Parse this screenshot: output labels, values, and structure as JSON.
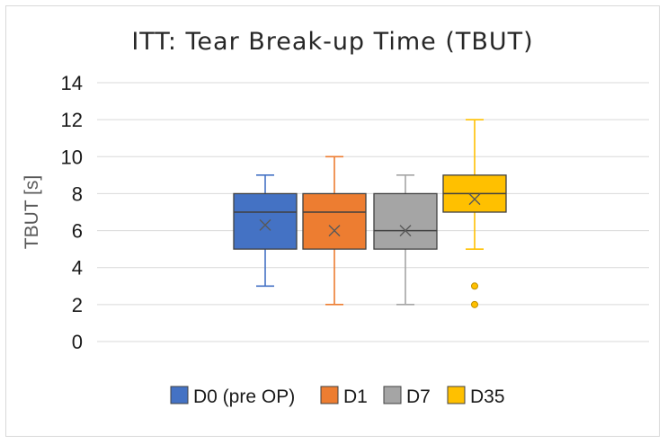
{
  "chart_data": {
    "type": "boxplot",
    "title": "ITT: Tear Break-up Time (TBUT)",
    "xlabel": "",
    "ylabel": "TBUT [s]",
    "ylim": [
      0,
      14
    ],
    "yticks": [
      0,
      2,
      4,
      6,
      8,
      10,
      12,
      14
    ],
    "grid": true,
    "legend_position": "bottom",
    "series": [
      {
        "name": "D0 (pre OP)",
        "color": "#4472c4",
        "min": 3,
        "q1": 5,
        "median": 7,
        "q3": 8,
        "max": 9,
        "mean": 6.3,
        "outliers": []
      },
      {
        "name": "D1",
        "color": "#ed7d31",
        "min": 2,
        "q1": 5,
        "median": 7,
        "q3": 8,
        "max": 10,
        "mean": 6.0,
        "outliers": []
      },
      {
        "name": "D7",
        "color": "#a5a5a5",
        "min": 2,
        "q1": 5,
        "median": 6,
        "q3": 8,
        "max": 9,
        "mean": 6.0,
        "outliers": []
      },
      {
        "name": "D35",
        "color": "#ffc000",
        "min": 5,
        "q1": 7,
        "median": 8,
        "q3": 9,
        "max": 12,
        "mean": 7.7,
        "outliers": [
          3,
          2
        ]
      }
    ]
  }
}
